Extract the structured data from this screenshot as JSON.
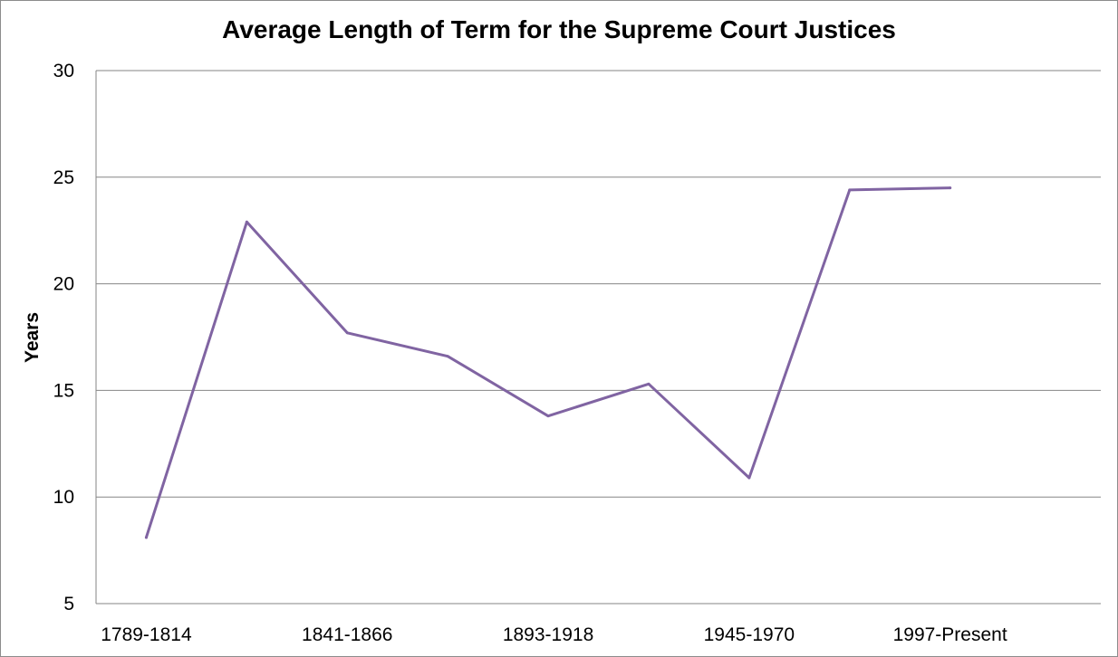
{
  "chart_data": {
    "type": "line",
    "title": "Average Length of Term for the Supreme Court Justices",
    "xlabel": "",
    "ylabel": "Years",
    "categories": [
      "1789-1814",
      "",
      "1841-1866",
      "",
      "1893-1918",
      "",
      "1945-1970",
      "",
      "1997-Present"
    ],
    "series": [
      {
        "values": [
          8.1,
          22.9,
          17.7,
          16.6,
          13.8,
          15.3,
          10.9,
          24.4,
          24.5
        ]
      }
    ],
    "ylim": [
      5,
      30
    ],
    "yticks": [
      "5",
      "10",
      "15",
      "20",
      "25",
      "30"
    ],
    "grid": true,
    "legend": "none",
    "colors": {
      "line": "#8064A2",
      "grid": "#868686"
    }
  }
}
